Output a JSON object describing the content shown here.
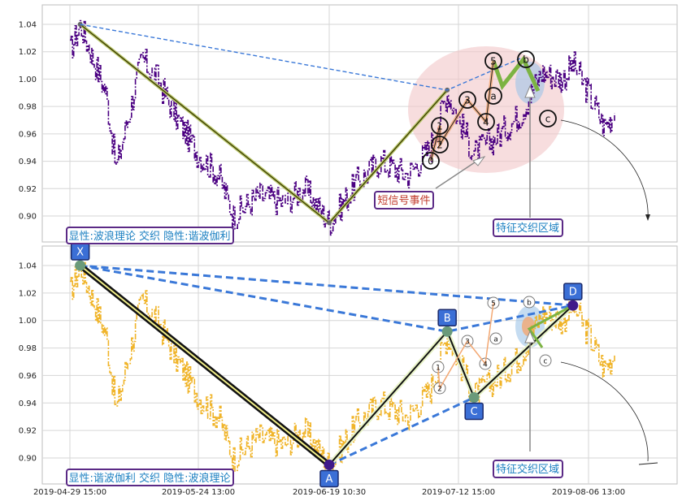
{
  "chart_data": {
    "type": "line",
    "x_tick_labels": [
      "2019-04-29 15:00",
      "2019-05-24 13:00",
      "2019-06-19 10:30",
      "2019-07-12 15:00",
      "2019-08-06 13:00"
    ],
    "y_ticks": [
      0.9,
      0.92,
      0.94,
      0.96,
      0.98,
      1.0,
      1.02,
      1.04
    ],
    "ylim": [
      0.888,
      1.052
    ],
    "grid": true,
    "colors": {
      "top_price": "#4b0082",
      "bottom_price": "#f0b429",
      "zigzag": "#3a3a00",
      "blue_dash": "#3a78d8",
      "green_wave": "#7cb342",
      "label_box": "#5b2a86",
      "label_text": "#1a7fc1",
      "point_box": "#3b6fd6",
      "event_text": "#c0392b",
      "pink_zone": "#f2c6c8"
    },
    "panels": [
      {
        "panel": "top",
        "legend_box": "显性:波浪理论 交织 隐性:谐波伽利",
        "annotations": {
          "event": "短信号事件",
          "zone": "特征交织区域"
        },
        "zigzag_points": [
          {
            "x": "2019-05-01",
            "y": 1.04
          },
          {
            "x": "2019-06-19",
            "y": 0.895
          },
          {
            "x": "2019-07-10",
            "y": 0.992
          }
        ],
        "wave_labels": [
          "0",
          "1",
          "2",
          "3",
          "4",
          "5",
          "a",
          "b",
          "c"
        ]
      },
      {
        "panel": "bottom",
        "legend_box": "显性:谐波伽利 交织 隐性:波浪理论",
        "annotations": {
          "zone": "特征交织区域"
        },
        "harmonic_points": [
          {
            "label": "X",
            "x": "2019-05-01",
            "y": 1.04
          },
          {
            "label": "A",
            "x": "2019-06-19",
            "y": 0.895
          },
          {
            "label": "B",
            "x": "2019-07-10",
            "y": 0.992
          },
          {
            "label": "C",
            "x": "2019-07-15",
            "y": 0.944
          },
          {
            "label": "D",
            "x": "2019-08-03",
            "y": 1.011
          }
        ],
        "wave_labels": [
          "1",
          "2",
          "3",
          "4",
          "5",
          "a",
          "b",
          "c"
        ]
      }
    ]
  }
}
